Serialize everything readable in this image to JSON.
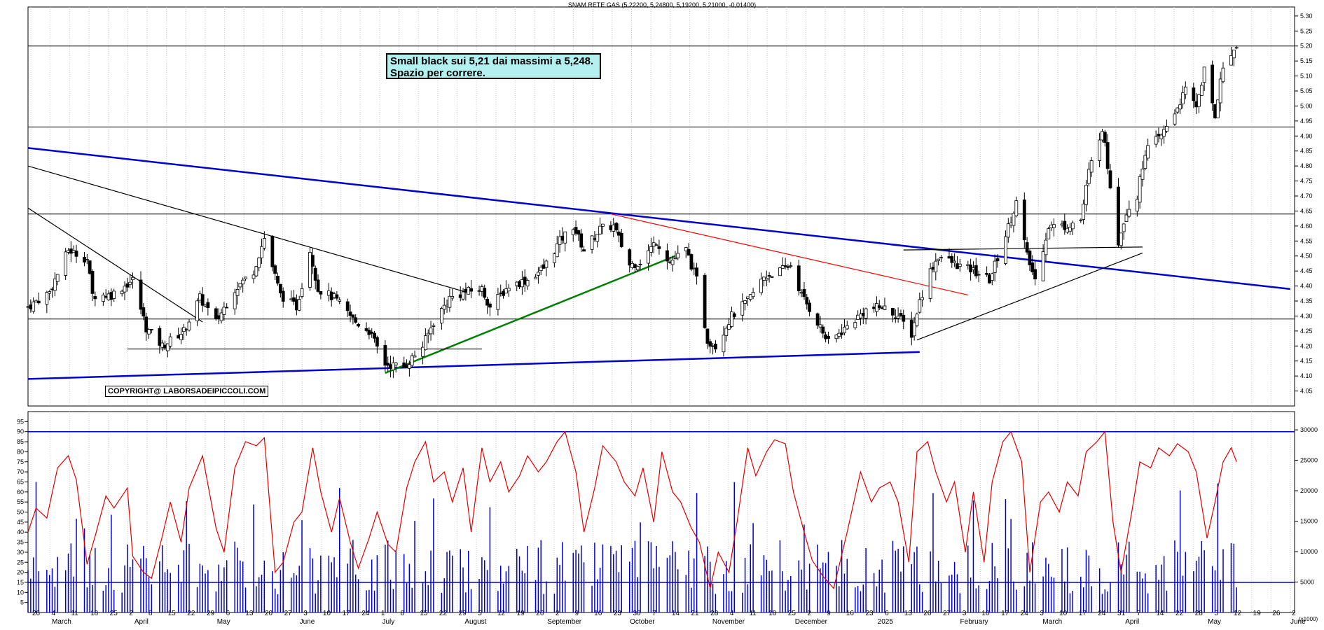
{
  "chart_data": [
    {
      "type": "candlestick",
      "title": "SNAM RETE GAS (5,22200, 5,24800, 5,19200, 5,21000, -0,01400)",
      "ylim": [
        4.0,
        5.33
      ],
      "yticks": [
        "5.30",
        "5.25",
        "5.20",
        "5.15",
        "5.10",
        "5.05",
        "5.00",
        "4.95",
        "4.90",
        "4.85",
        "4.80",
        "4.75",
        "4.70",
        "4.65",
        "4.60",
        "4.55",
        "4.50",
        "4.45",
        "4.40",
        "4.35",
        "4.30",
        "4.25",
        "4.20",
        "4.15",
        "4.10",
        "4.05"
      ],
      "grid": true,
      "horizontal_levels": [
        5.2,
        4.93,
        4.64,
        4.29
      ],
      "close_path": [
        {
          "d": "2024-02-26",
          "c": 4.33
        },
        {
          "d": "2024-03-05",
          "c": 4.38
        },
        {
          "d": "2024-03-12",
          "c": 4.52
        },
        {
          "d": "2024-03-19",
          "c": 4.49
        },
        {
          "d": "2024-03-21",
          "c": 4.37
        },
        {
          "d": "2024-03-28",
          "c": 4.37
        },
        {
          "d": "2024-04-05",
          "c": 4.42
        },
        {
          "d": "2024-04-10",
          "c": 4.26
        },
        {
          "d": "2024-04-16",
          "c": 4.2
        },
        {
          "d": "2024-04-24",
          "c": 4.25
        },
        {
          "d": "2024-04-30",
          "c": 4.36
        },
        {
          "d": "2024-05-06",
          "c": 4.28
        },
        {
          "d": "2024-05-13",
          "c": 4.39
        },
        {
          "d": "2024-05-20",
          "c": 4.45
        },
        {
          "d": "2024-05-24",
          "c": 4.56
        },
        {
          "d": "2024-05-30",
          "c": 4.37
        },
        {
          "d": "2024-06-05",
          "c": 4.33
        },
        {
          "d": "2024-06-10",
          "c": 4.52
        },
        {
          "d": "2024-06-13",
          "c": 4.39
        },
        {
          "d": "2024-06-19",
          "c": 4.36
        },
        {
          "d": "2024-06-27",
          "c": 4.28
        },
        {
          "d": "2024-07-02",
          "c": 4.25
        },
        {
          "d": "2024-07-08",
          "c": 4.14
        },
        {
          "d": "2024-07-15",
          "c": 4.13
        },
        {
          "d": "2024-07-22",
          "c": 4.2
        },
        {
          "d": "2024-07-26",
          "c": 4.28
        },
        {
          "d": "2024-08-01",
          "c": 4.36
        },
        {
          "d": "2024-08-07",
          "c": 4.38
        },
        {
          "d": "2024-08-13",
          "c": 4.39
        },
        {
          "d": "2024-08-16",
          "c": 4.33
        },
        {
          "d": "2024-08-23",
          "c": 4.4
        },
        {
          "d": "2024-08-30",
          "c": 4.42
        },
        {
          "d": "2024-09-05",
          "c": 4.46
        },
        {
          "d": "2024-09-11",
          "c": 4.55
        },
        {
          "d": "2024-09-16",
          "c": 4.6
        },
        {
          "d": "2024-09-20",
          "c": 4.52
        },
        {
          "d": "2024-09-26",
          "c": 4.59
        },
        {
          "d": "2024-10-01",
          "c": 4.6
        },
        {
          "d": "2024-10-07",
          "c": 4.47
        },
        {
          "d": "2024-10-11",
          "c": 4.48
        },
        {
          "d": "2024-10-17",
          "c": 4.55
        },
        {
          "d": "2024-10-22",
          "c": 4.48
        },
        {
          "d": "2024-10-28",
          "c": 4.52
        },
        {
          "d": "2024-11-01",
          "c": 4.42
        },
        {
          "d": "2024-11-05",
          "c": 4.22
        },
        {
          "d": "2024-11-08",
          "c": 4.2
        },
        {
          "d": "2024-11-14",
          "c": 4.3
        },
        {
          "d": "2024-11-20",
          "c": 4.35
        },
        {
          "d": "2024-11-26",
          "c": 4.43
        },
        {
          "d": "2024-12-02",
          "c": 4.45
        },
        {
          "d": "2024-12-06",
          "c": 4.47
        },
        {
          "d": "2024-12-10",
          "c": 4.37
        },
        {
          "d": "2024-12-16",
          "c": 4.28
        },
        {
          "d": "2024-12-20",
          "c": 4.21
        },
        {
          "d": "2025-01-03",
          "c": 4.32
        },
        {
          "d": "2025-01-09",
          "c": 4.33
        },
        {
          "d": "2025-01-15",
          "c": 4.3
        },
        {
          "d": "2025-01-20",
          "c": 4.24
        },
        {
          "d": "2025-01-23",
          "c": 4.35
        },
        {
          "d": "2025-01-27",
          "c": 4.45
        },
        {
          "d": "2025-01-30",
          "c": 4.5
        },
        {
          "d": "2025-02-06",
          "c": 4.47
        },
        {
          "d": "2025-02-12",
          "c": 4.45
        },
        {
          "d": "2025-02-18",
          "c": 4.42
        },
        {
          "d": "2025-02-24",
          "c": 4.57
        },
        {
          "d": "2025-02-28",
          "c": 4.68
        },
        {
          "d": "2025-03-04",
          "c": 4.5
        },
        {
          "d": "2025-03-07",
          "c": 4.42
        },
        {
          "d": "2025-03-12",
          "c": 4.6
        },
        {
          "d": "2025-03-18",
          "c": 4.6
        },
        {
          "d": "2025-03-24",
          "c": 4.62
        },
        {
          "d": "2025-03-27",
          "c": 4.78
        },
        {
          "d": "2025-04-01",
          "c": 4.93
        },
        {
          "d": "2025-04-03",
          "c": 4.8
        },
        {
          "d": "2025-04-07",
          "c": 4.55
        },
        {
          "d": "2025-04-10",
          "c": 4.65
        },
        {
          "d": "2025-04-14",
          "c": 4.7
        },
        {
          "d": "2025-04-17",
          "c": 4.85
        },
        {
          "d": "2025-04-23",
          "c": 4.9
        },
        {
          "d": "2025-04-28",
          "c": 4.98
        },
        {
          "d": "2025-05-02",
          "c": 5.05
        },
        {
          "d": "2025-05-06",
          "c": 5.0
        },
        {
          "d": "2025-05-09",
          "c": 5.12
        },
        {
          "d": "2025-05-13",
          "c": 4.96
        },
        {
          "d": "2025-05-15",
          "c": 5.1
        },
        {
          "d": "2025-05-19",
          "c": 5.17
        },
        {
          "d": "2025-05-21",
          "c": 5.21
        }
      ],
      "trendlines": [
        {
          "color": "#0000cc",
          "from": [
            "2024-02-26",
            4.86
          ],
          "to": [
            "2025-06-10",
            4.39
          ]
        },
        {
          "color": "#0000cc",
          "from": [
            "2024-02-26",
            4.09
          ],
          "to": [
            "2025-01-23",
            4.18
          ]
        },
        {
          "color": "#000000",
          "from": [
            "2024-02-26",
            4.8
          ],
          "to": [
            "2024-08-07",
            4.38
          ]
        },
        {
          "color": "#000000",
          "from": [
            "2024-02-26",
            4.66
          ],
          "to": [
            "2024-05-01",
            4.28
          ]
        },
        {
          "color": "#ff0000",
          "from": [
            "2024-09-30",
            4.64
          ],
          "to": [
            "2025-02-10",
            4.37
          ]
        },
        {
          "color": "#008000",
          "from": [
            "2024-07-08",
            4.11
          ],
          "to": [
            "2024-10-24",
            4.5
          ]
        },
        {
          "color": "#000000",
          "from": [
            "2025-01-22",
            4.22
          ],
          "to": [
            "2025-04-16",
            4.51
          ]
        },
        {
          "color": "#000000",
          "from": [
            "2024-04-03",
            4.19
          ],
          "to": [
            "2024-08-13",
            4.19
          ]
        },
        {
          "color": "#000000",
          "from": [
            "2025-01-17",
            4.52
          ],
          "to": [
            "2025-04-16",
            4.53
          ]
        }
      ],
      "annotations": [
        "Small black sui 5,21 dai massimi a 5,248.",
        "Spazio per correre."
      ],
      "copyright": "COPYRIGHT@ LABORSADEIPICCOLI.COM"
    },
    {
      "type": "bar+line",
      "left_yticks": [
        "95",
        "90",
        "85",
        "80",
        "75",
        "70",
        "65",
        "60",
        "55",
        "50",
        "45",
        "40",
        "35",
        "30",
        "25",
        "20",
        "15",
        "10",
        "5"
      ],
      "right_yticks": [
        "30000",
        "25000",
        "20000",
        "15000",
        "10000",
        "5000"
      ],
      "right_unit": "(x1000)",
      "levels": [
        90,
        15
      ],
      "volume_series_note": "Daily volume bars (blue), values in thousands",
      "oscillator": [
        {
          "d": "2024-02-26",
          "v": 40
        },
        {
          "d": "2024-02-29",
          "v": 52
        },
        {
          "d": "2024-03-04",
          "v": 47
        },
        {
          "d": "2024-03-08",
          "v": 72
        },
        {
          "d": "2024-03-12",
          "v": 78
        },
        {
          "d": "2024-03-15",
          "v": 66
        },
        {
          "d": "2024-03-19",
          "v": 24
        },
        {
          "d": "2024-03-22",
          "v": 38
        },
        {
          "d": "2024-03-26",
          "v": 58
        },
        {
          "d": "2024-03-29",
          "v": 52
        },
        {
          "d": "2024-04-03",
          "v": 62
        },
        {
          "d": "2024-04-05",
          "v": 28
        },
        {
          "d": "2024-04-09",
          "v": 20
        },
        {
          "d": "2024-04-12",
          "v": 17
        },
        {
          "d": "2024-04-16",
          "v": 38
        },
        {
          "d": "2024-04-19",
          "v": 55
        },
        {
          "d": "2024-04-23",
          "v": 35
        },
        {
          "d": "2024-04-26",
          "v": 62
        },
        {
          "d": "2024-05-01",
          "v": 78
        },
        {
          "d": "2024-05-06",
          "v": 42
        },
        {
          "d": "2024-05-09",
          "v": 30
        },
        {
          "d": "2024-05-13",
          "v": 72
        },
        {
          "d": "2024-05-17",
          "v": 85
        },
        {
          "d": "2024-05-21",
          "v": 83
        },
        {
          "d": "2024-05-24",
          "v": 87
        },
        {
          "d": "2024-05-28",
          "v": 20
        },
        {
          "d": "2024-05-31",
          "v": 25
        },
        {
          "d": "2024-06-04",
          "v": 45
        },
        {
          "d": "2024-06-07",
          "v": 50
        },
        {
          "d": "2024-06-11",
          "v": 82
        },
        {
          "d": "2024-06-14",
          "v": 60
        },
        {
          "d": "2024-06-18",
          "v": 40
        },
        {
          "d": "2024-06-21",
          "v": 57
        },
        {
          "d": "2024-06-25",
          "v": 35
        },
        {
          "d": "2024-06-28",
          "v": 22
        },
        {
          "d": "2024-07-02",
          "v": 37
        },
        {
          "d": "2024-07-05",
          "v": 50
        },
        {
          "d": "2024-07-09",
          "v": 34
        },
        {
          "d": "2024-07-12",
          "v": 30
        },
        {
          "d": "2024-07-16",
          "v": 62
        },
        {
          "d": "2024-07-19",
          "v": 75
        },
        {
          "d": "2024-07-23",
          "v": 85
        },
        {
          "d": "2024-07-26",
          "v": 65
        },
        {
          "d": "2024-07-30",
          "v": 70
        },
        {
          "d": "2024-08-02",
          "v": 55
        },
        {
          "d": "2024-08-06",
          "v": 72
        },
        {
          "d": "2024-08-09",
          "v": 40
        },
        {
          "d": "2024-08-13",
          "v": 82
        },
        {
          "d": "2024-08-16",
          "v": 65
        },
        {
          "d": "2024-08-20",
          "v": 75
        },
        {
          "d": "2024-08-23",
          "v": 60
        },
        {
          "d": "2024-08-27",
          "v": 68
        },
        {
          "d": "2024-08-30",
          "v": 78
        },
        {
          "d": "2024-09-03",
          "v": 70
        },
        {
          "d": "2024-09-06",
          "v": 75
        },
        {
          "d": "2024-09-10",
          "v": 85
        },
        {
          "d": "2024-09-13",
          "v": 90
        },
        {
          "d": "2024-09-17",
          "v": 70
        },
        {
          "d": "2024-09-20",
          "v": 40
        },
        {
          "d": "2024-09-24",
          "v": 62
        },
        {
          "d": "2024-09-27",
          "v": 83
        },
        {
          "d": "2024-10-02",
          "v": 75
        },
        {
          "d": "2024-10-05",
          "v": 65
        },
        {
          "d": "2024-10-09",
          "v": 58
        },
        {
          "d": "2024-10-12",
          "v": 72
        },
        {
          "d": "2024-10-16",
          "v": 45
        },
        {
          "d": "2024-10-19",
          "v": 80
        },
        {
          "d": "2024-10-23",
          "v": 60
        },
        {
          "d": "2024-10-26",
          "v": 55
        },
        {
          "d": "2024-10-30",
          "v": 42
        },
        {
          "d": "2024-11-02",
          "v": 35
        },
        {
          "d": "2024-11-06",
          "v": 12
        },
        {
          "d": "2024-11-09",
          "v": 30
        },
        {
          "d": "2024-11-13",
          "v": 20
        },
        {
          "d": "2024-11-16",
          "v": 45
        },
        {
          "d": "2024-11-20",
          "v": 82
        },
        {
          "d": "2024-11-23",
          "v": 68
        },
        {
          "d": "2024-11-27",
          "v": 80
        },
        {
          "d": "2024-11-30",
          "v": 86
        },
        {
          "d": "2024-12-04",
          "v": 84
        },
        {
          "d": "2024-12-07",
          "v": 60
        },
        {
          "d": "2024-12-11",
          "v": 40
        },
        {
          "d": "2024-12-14",
          "v": 26
        },
        {
          "d": "2024-12-18",
          "v": 18
        },
        {
          "d": "2024-12-22",
          "v": 12
        },
        {
          "d": "2024-12-27",
          "v": 40
        },
        {
          "d": "2025-01-01",
          "v": 70
        },
        {
          "d": "2025-01-05",
          "v": 55
        },
        {
          "d": "2025-01-08",
          "v": 62
        },
        {
          "d": "2025-01-12",
          "v": 65
        },
        {
          "d": "2025-01-15",
          "v": 55
        },
        {
          "d": "2025-01-19",
          "v": 25
        },
        {
          "d": "2025-01-22",
          "v": 80
        },
        {
          "d": "2025-01-26",
          "v": 85
        },
        {
          "d": "2025-01-29",
          "v": 70
        },
        {
          "d": "2025-02-02",
          "v": 55
        },
        {
          "d": "2025-02-05",
          "v": 65
        },
        {
          "d": "2025-02-09",
          "v": 30
        },
        {
          "d": "2025-02-12",
          "v": 60
        },
        {
          "d": "2025-02-16",
          "v": 25
        },
        {
          "d": "2025-02-19",
          "v": 65
        },
        {
          "d": "2025-02-23",
          "v": 85
        },
        {
          "d": "2025-02-26",
          "v": 90
        },
        {
          "d": "2025-03-02",
          "v": 75
        },
        {
          "d": "2025-03-05",
          "v": 20
        },
        {
          "d": "2025-03-09",
          "v": 55
        },
        {
          "d": "2025-03-12",
          "v": 60
        },
        {
          "d": "2025-03-16",
          "v": 50
        },
        {
          "d": "2025-03-19",
          "v": 65
        },
        {
          "d": "2025-03-23",
          "v": 58
        },
        {
          "d": "2025-03-26",
          "v": 80
        },
        {
          "d": "2025-03-30",
          "v": 85
        },
        {
          "d": "2025-04-02",
          "v": 90
        },
        {
          "d": "2025-04-05",
          "v": 45
        },
        {
          "d": "2025-04-08",
          "v": 20
        },
        {
          "d": "2025-04-12",
          "v": 50
        },
        {
          "d": "2025-04-15",
          "v": 75
        },
        {
          "d": "2025-04-19",
          "v": 72
        },
        {
          "d": "2025-04-22",
          "v": 82
        },
        {
          "d": "2025-04-26",
          "v": 78
        },
        {
          "d": "2025-04-29",
          "v": 84
        },
        {
          "d": "2025-05-03",
          "v": 80
        },
        {
          "d": "2025-05-06",
          "v": 70
        },
        {
          "d": "2025-05-10",
          "v": 37
        },
        {
          "d": "2025-05-13",
          "v": 55
        },
        {
          "d": "2025-05-16",
          "v": 75
        },
        {
          "d": "2025-05-19",
          "v": 82
        },
        {
          "d": "2025-05-21",
          "v": 75
        }
      ]
    }
  ],
  "xaxis": {
    "day_ticks": [
      "26",
      "4",
      "11",
      "18",
      "25",
      "2",
      "8",
      "15",
      "22",
      "29",
      "6",
      "13",
      "20",
      "27",
      "3",
      "10",
      "17",
      "24",
      "1",
      "8",
      "15",
      "22",
      "29",
      "5",
      "12",
      "19",
      "26",
      "2",
      "9",
      "16",
      "23",
      "30",
      "7",
      "14",
      "21",
      "28",
      "4",
      "11",
      "18",
      "25",
      "2",
      "9",
      "16",
      "23",
      "6",
      "13",
      "20",
      "27",
      "3",
      "10",
      "17",
      "24",
      "3",
      "10",
      "17",
      "24",
      "31",
      "7",
      "14",
      "22",
      "28",
      "5",
      "12",
      "19",
      "26",
      "2"
    ],
    "month_labels": [
      "March",
      "April",
      "May",
      "June",
      "July",
      "August",
      "September",
      "October",
      "November",
      "December",
      "2025",
      "February",
      "March",
      "April",
      "May",
      "June"
    ]
  }
}
